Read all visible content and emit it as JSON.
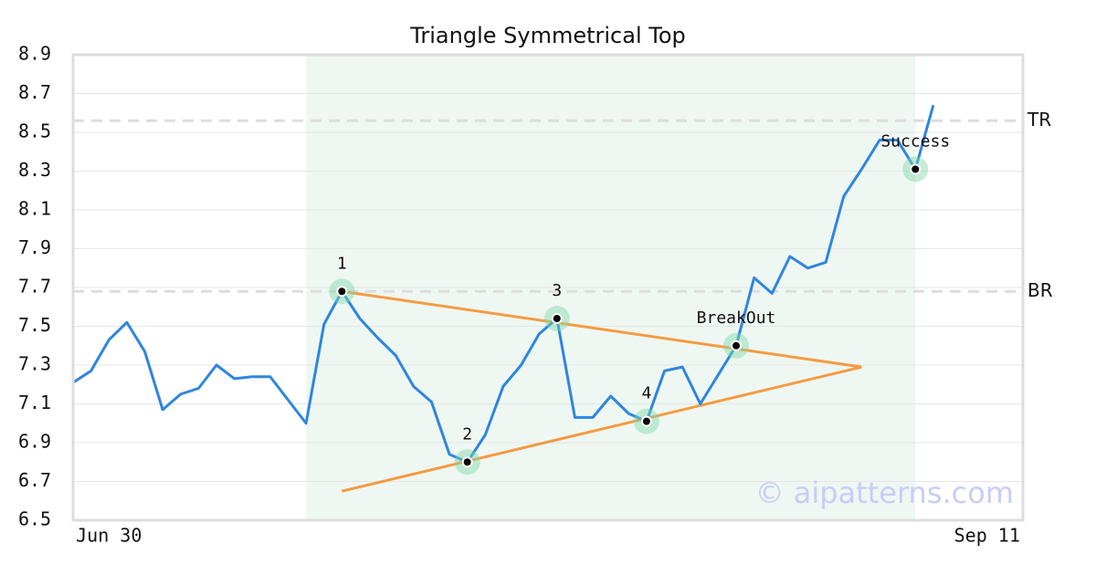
{
  "chart_data": {
    "type": "line",
    "title": "Triangle Symmetrical Top",
    "x": [
      0,
      1,
      2,
      3,
      4,
      5,
      6,
      7,
      8,
      9,
      10,
      11,
      12,
      13,
      14,
      15,
      16,
      17,
      18,
      19,
      20,
      21,
      22,
      23,
      24,
      25,
      26,
      27,
      28,
      29,
      30,
      31,
      32,
      33,
      34,
      35,
      36,
      37,
      38,
      39,
      40,
      41,
      42,
      43,
      44,
      45,
      46,
      47,
      48
    ],
    "series": [
      {
        "color": "#2e86de",
        "values": [
          7.21,
          7.27,
          7.43,
          7.52,
          7.37,
          7.07,
          7.15,
          7.18,
          7.3,
          7.23,
          7.24,
          7.24,
          7.12,
          7.0,
          7.51,
          7.68,
          7.54,
          7.44,
          7.35,
          7.19,
          7.11,
          6.84,
          6.8,
          6.94,
          7.19,
          7.3,
          7.46,
          7.54,
          7.03,
          7.03,
          7.14,
          7.05,
          7.01,
          7.27,
          7.29,
          7.1,
          7.25,
          7.4,
          7.75,
          7.67,
          7.86,
          7.8,
          7.83,
          8.17,
          8.31,
          8.46,
          8.46,
          8.31,
          8.64
        ]
      }
    ],
    "xlim": [
      0,
      53
    ],
    "xticks": [
      {
        "value": 2,
        "label": "Jun 30"
      },
      {
        "value": 51,
        "label": "Sep 11"
      }
    ],
    "ylim": [
      6.5,
      8.9
    ],
    "yticks": [
      6.5,
      6.7,
      6.9,
      7.1,
      7.3,
      7.5,
      7.7,
      7.9,
      8.1,
      8.3,
      8.5,
      8.7,
      8.9
    ],
    "grid": true,
    "shaded_region": {
      "x": [
        13,
        47
      ],
      "color": "#eef7f2"
    },
    "trend_lines": [
      {
        "color": "#f59b42",
        "x": [
          15,
          44
        ],
        "y": [
          7.68,
          7.29
        ]
      },
      {
        "color": "#f59b42",
        "x": [
          15,
          44
        ],
        "y": [
          6.65,
          7.29
        ]
      }
    ],
    "levels": [
      {
        "label": "TR",
        "value": 8.56
      },
      {
        "label": "BR",
        "value": 7.68
      }
    ],
    "pattern_points": [
      {
        "label": "1",
        "x": 15,
        "y": 7.68
      },
      {
        "label": "2",
        "x": 22,
        "y": 6.8
      },
      {
        "label": "3",
        "x": 27,
        "y": 7.54
      },
      {
        "label": "4",
        "x": 32,
        "y": 7.01
      },
      {
        "label": "BreakOut",
        "x": 37,
        "y": 7.4
      },
      {
        "label": "Success",
        "x": 47,
        "y": 8.31
      }
    ],
    "watermark": "© aipatterns.com"
  }
}
